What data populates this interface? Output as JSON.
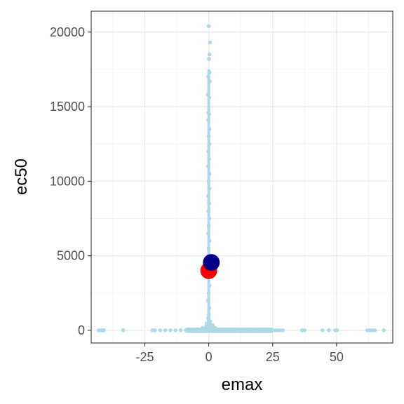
{
  "chart_data": {
    "type": "scatter",
    "xlabel": "emax",
    "ylabel": "ec50",
    "xlim": [
      -46,
      72
    ],
    "ylim": [
      -850,
      21400
    ],
    "x_ticks": [
      -25,
      0,
      25,
      50
    ],
    "x_tick_labels": [
      "-25",
      "0",
      "25",
      "50"
    ],
    "y_ticks": [
      0,
      5000,
      10000,
      15000,
      20000
    ],
    "y_tick_labels": [
      "0",
      "5000",
      "10000",
      "15000",
      "20000"
    ],
    "grid": true,
    "background": "white",
    "series": [
      {
        "role": "all points",
        "color": "#add8e6",
        "points": [
          [
            -43,
            0
          ],
          [
            -42.2,
            0
          ],
          [
            -41.5,
            0
          ],
          [
            -41,
            0
          ],
          [
            -33.5,
            0
          ],
          [
            -22,
            0
          ],
          [
            -21,
            0
          ],
          [
            -19,
            0
          ],
          [
            -17,
            0
          ],
          [
            -15,
            0
          ],
          [
            -13,
            0
          ],
          [
            -11,
            0
          ],
          [
            -9,
            0
          ],
          [
            -8,
            0
          ],
          [
            -7,
            0
          ],
          [
            -6,
            0
          ],
          [
            -5,
            0
          ],
          [
            -4,
            0
          ],
          [
            -3,
            0
          ],
          [
            -2,
            0
          ],
          [
            2,
            0
          ],
          [
            3,
            0
          ],
          [
            4,
            0
          ],
          [
            5,
            0
          ],
          [
            6,
            0
          ],
          [
            7,
            0
          ],
          [
            8,
            0
          ],
          [
            9,
            0
          ],
          [
            10,
            0
          ],
          [
            11,
            0
          ],
          [
            12,
            0
          ],
          [
            13,
            0
          ],
          [
            14,
            0
          ],
          [
            15,
            0
          ],
          [
            16,
            0
          ],
          [
            17,
            0
          ],
          [
            18,
            0
          ],
          [
            19,
            0
          ],
          [
            20,
            0
          ],
          [
            21,
            0
          ],
          [
            22,
            0
          ],
          [
            23,
            0
          ],
          [
            24,
            0
          ],
          [
            25,
            0
          ],
          [
            26,
            0
          ],
          [
            27,
            0
          ],
          [
            28,
            0
          ],
          [
            29,
            0
          ],
          [
            36.5,
            0
          ],
          [
            37.5,
            0
          ],
          [
            44.5,
            0
          ],
          [
            47,
            0
          ],
          [
            49.5,
            0
          ],
          [
            50.2,
            0
          ],
          [
            62,
            0
          ],
          [
            63,
            0
          ],
          [
            64,
            0
          ],
          [
            65,
            0
          ],
          [
            68.5,
            0
          ],
          [
            1.5,
            100
          ],
          [
            -1.5,
            100
          ],
          [
            2.5,
            150
          ],
          [
            -2.5,
            150
          ],
          [
            1,
            300
          ],
          [
            -1,
            300
          ],
          [
            1.6,
            350
          ],
          [
            -0.8,
            450
          ],
          [
            0.6,
            600
          ],
          [
            0,
            20400
          ],
          [
            0.5,
            19300
          ],
          [
            0.3,
            18500
          ],
          [
            0.1,
            18200
          ],
          [
            0.3,
            17300
          ],
          [
            -0.2,
            17000
          ],
          [
            0.4,
            16700
          ],
          [
            -0.3,
            15800
          ],
          [
            0.2,
            15600
          ],
          [
            -0.1,
            14600
          ],
          [
            0.1,
            14500
          ],
          [
            -0.2,
            14100
          ],
          [
            0.2,
            13500
          ],
          [
            0,
            13000
          ],
          [
            0.3,
            12500
          ],
          [
            -0.2,
            12000
          ],
          [
            0.1,
            11500
          ],
          [
            -0.3,
            11000
          ],
          [
            0.2,
            10500
          ],
          [
            0,
            10000
          ],
          [
            0.3,
            9500
          ],
          [
            -0.2,
            9000
          ],
          [
            0.1,
            8500
          ],
          [
            -0.1,
            8000
          ],
          [
            0.2,
            7500
          ],
          [
            0,
            7000
          ],
          [
            -0.2,
            6500
          ],
          [
            0.3,
            6000
          ],
          [
            0,
            5500
          ],
          [
            -0.3,
            5000
          ],
          [
            0.2,
            4500
          ],
          [
            0,
            4000
          ],
          [
            -0.2,
            3500
          ],
          [
            0.3,
            3000
          ],
          [
            0,
            2500
          ],
          [
            -0.3,
            2000
          ],
          [
            0.2,
            1500
          ],
          [
            0,
            1000
          ],
          [
            -0.2,
            800
          ],
          [
            0.3,
            500
          ]
        ]
      },
      {
        "role": "highlight",
        "color": "#ff0000",
        "points": [
          [
            0,
            4000
          ]
        ]
      },
      {
        "role": "highlight",
        "color": "#00008b",
        "points": [
          [
            1,
            4550
          ]
        ]
      }
    ]
  }
}
